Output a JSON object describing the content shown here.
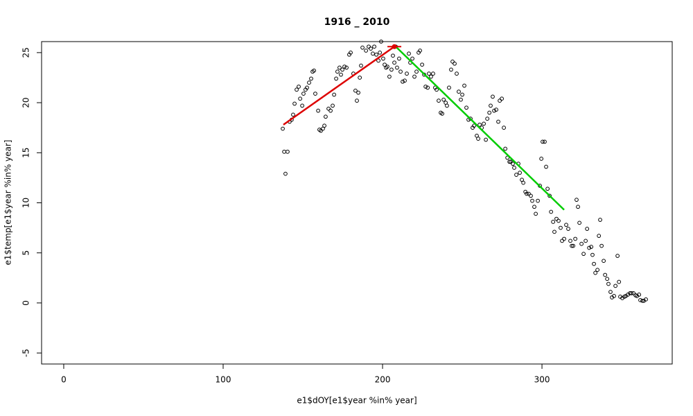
{
  "chart_data": {
    "type": "scatter",
    "title": "1916 _ 2010",
    "xlabel": "e1$dOY[e1$year %in% year]",
    "ylabel": "e1$temp[e1$year %in% year]",
    "xlim": [
      -13.9,
      381.7
    ],
    "ylim": [
      -6.1,
      26.1
    ],
    "xticks": [
      0,
      100,
      200,
      300
    ],
    "yticks": [
      -5,
      0,
      5,
      10,
      15,
      20,
      25
    ],
    "color": "#000000",
    "x": [
      137.4,
      138.3,
      139.1,
      140.4,
      141.7,
      143,
      143.9,
      144.8,
      146.1,
      147.4,
      148.3,
      149.6,
      150.4,
      151.7,
      152.6,
      153.9,
      155.2,
      156.1,
      157,
      157.8,
      159.6,
      160.4,
      161.3,
      162.6,
      163.5,
      164.3,
      166.1,
      167.4,
      168.7,
      169.6,
      170.9,
      171.7,
      173,
      173.9,
      174.8,
      176.1,
      177.4,
      179.1,
      180,
      181.7,
      183,
      183.9,
      184.8,
      185.7,
      186.5,
      187.4,
      189.6,
      191.3,
      192.6,
      193.9,
      194.8,
      196.1,
      197.4,
      198.3,
      199.1,
      200.4,
      201.3,
      202.2,
      203,
      204.3,
      205.6,
      206.5,
      207.4,
      208.3,
      209.1,
      210.4,
      211.3,
      212.6,
      213.9,
      215.2,
      216.5,
      217.4,
      218.7,
      220,
      221.3,
      222.6,
      223.5,
      224.8,
      226.1,
      227,
      228.3,
      229.1,
      230.4,
      231.7,
      233,
      233.9,
      235.2,
      236.5,
      237.4,
      238.3,
      239.6,
      240.4,
      241.7,
      243,
      243.9,
      245.2,
      246.5,
      247.8,
      249.1,
      250,
      251.3,
      252.6,
      253.9,
      255.2,
      256.5,
      257.4,
      259.1,
      260,
      260.9,
      262.2,
      263.5,
      264.8,
      265.7,
      267,
      267.8,
      269.1,
      270,
      271.3,
      272.6,
      273.5,
      274.8,
      276.1,
      277,
      278.3,
      279.6,
      280.4,
      281.7,
      282.6,
      283.9,
      285.2,
      286.1,
      287.4,
      288.3,
      289.6,
      290.4,
      291.7,
      293,
      293.9,
      295.2,
      296.1,
      297.4,
      298.7,
      299.6,
      300.4,
      301.7,
      302.6,
      303.5,
      304.8,
      305.7,
      307,
      307.8,
      309.1,
      310.4,
      311.7,
      312.6,
      313.9,
      315.2,
      316.5,
      317.8,
      318.7,
      319.6,
      320.9,
      321.7,
      322.6,
      323.5,
      324.8,
      326.1,
      327.4,
      328.3,
      329.6,
      330.9,
      331.7,
      332.6,
      333.5,
      334.8,
      335.7,
      336.5,
      337.4,
      338.7,
      339.6,
      340.9,
      341.7,
      343,
      343.9,
      345.2,
      346.1,
      347.4,
      348.3,
      349.1,
      350.4,
      351.7,
      352.6,
      353.9,
      355.2,
      356.1,
      357.4,
      358.7,
      359.6,
      360.9,
      361.7,
      363,
      363.9,
      365.2
    ],
    "values": [
      17.4,
      15.1,
      12.9,
      15.1,
      18.1,
      18.3,
      18.8,
      19.9,
      21.3,
      21.6,
      20.4,
      19.7,
      20.9,
      21.3,
      21.5,
      22,
      22.4,
      23.1,
      23.2,
      20.9,
      19.2,
      17.3,
      17.2,
      17.4,
      17.7,
      18.6,
      19.4,
      19.2,
      19.7,
      20.8,
      22.4,
      23.1,
      23.5,
      22.8,
      23.3,
      23.6,
      23.5,
      24.8,
      25,
      22.9,
      21.2,
      20.2,
      21,
      22.5,
      23.7,
      25.5,
      25.2,
      25.6,
      25.4,
      24.9,
      25.6,
      24.8,
      24.2,
      25,
      26.1,
      24.4,
      23.8,
      23.5,
      23.6,
      22.6,
      23.3,
      24.7,
      24,
      25.6,
      23.5,
      24.4,
      23.1,
      22.1,
      22.2,
      22.9,
      24.9,
      24,
      24.4,
      22.6,
      23.1,
      25,
      25.2,
      23.8,
      22.8,
      21.6,
      21.5,
      22.9,
      22.6,
      22.9,
      21.5,
      21.3,
      20.2,
      19,
      18.9,
      20.3,
      20,
      19.7,
      21.5,
      23.3,
      24.1,
      23.9,
      22.9,
      21.1,
      20.3,
      20.8,
      21.7,
      19.5,
      18.3,
      18.4,
      17.5,
      17.7,
      16.7,
      16.4,
      17.8,
      17.5,
      17.9,
      16.3,
      18.4,
      19,
      19.7,
      20.6,
      19.2,
      19.3,
      18.1,
      20.2,
      20.4,
      17.5,
      15.4,
      14.5,
      14.1,
      14.1,
      13.9,
      13.5,
      12.8,
      13.9,
      13,
      12.3,
      12,
      11.1,
      10.9,
      10.9,
      10.7,
      10.2,
      9.6,
      8.9,
      10.2,
      11.7,
      14.4,
      16.1,
      16.1,
      13.6,
      11.4,
      10.7,
      9.1,
      8.1,
      7.1,
      8.4,
      8.2,
      7.5,
      6.2,
      6.4,
      7.8,
      7.4,
      6.2,
      5.7,
      5.7,
      6.4,
      10.3,
      9.6,
      8,
      5.9,
      4.9,
      6.2,
      7.4,
      5.5,
      5.6,
      4.8,
      3.9,
      3,
      3.3,
      6.7,
      8.3,
      5.7,
      4.2,
      2.8,
      2.4,
      1.9,
      1.1,
      0.55,
      0.69,
      1.7,
      4.7,
      2.1,
      0.62,
      0.48,
      0.62,
      0.69,
      0.83,
      0.97,
      0.97,
      0.97,
      0.76,
      0.69,
      0.83,
      0.28,
      0.21,
      0.21,
      0.35
    ],
    "lines": [
      {
        "color": "#dd0000",
        "x": [
          137.8,
          207.4
        ],
        "values": [
          17.8,
          25.6
        ]
      },
      {
        "color": "#00cc00",
        "x": [
          208.3,
          313.9
        ],
        "values": [
          25.6,
          9.3
        ]
      }
    ],
    "markers": {
      "color": "#dd0000",
      "x": [
        207.4
      ],
      "values": [
        25.6
      ]
    }
  }
}
